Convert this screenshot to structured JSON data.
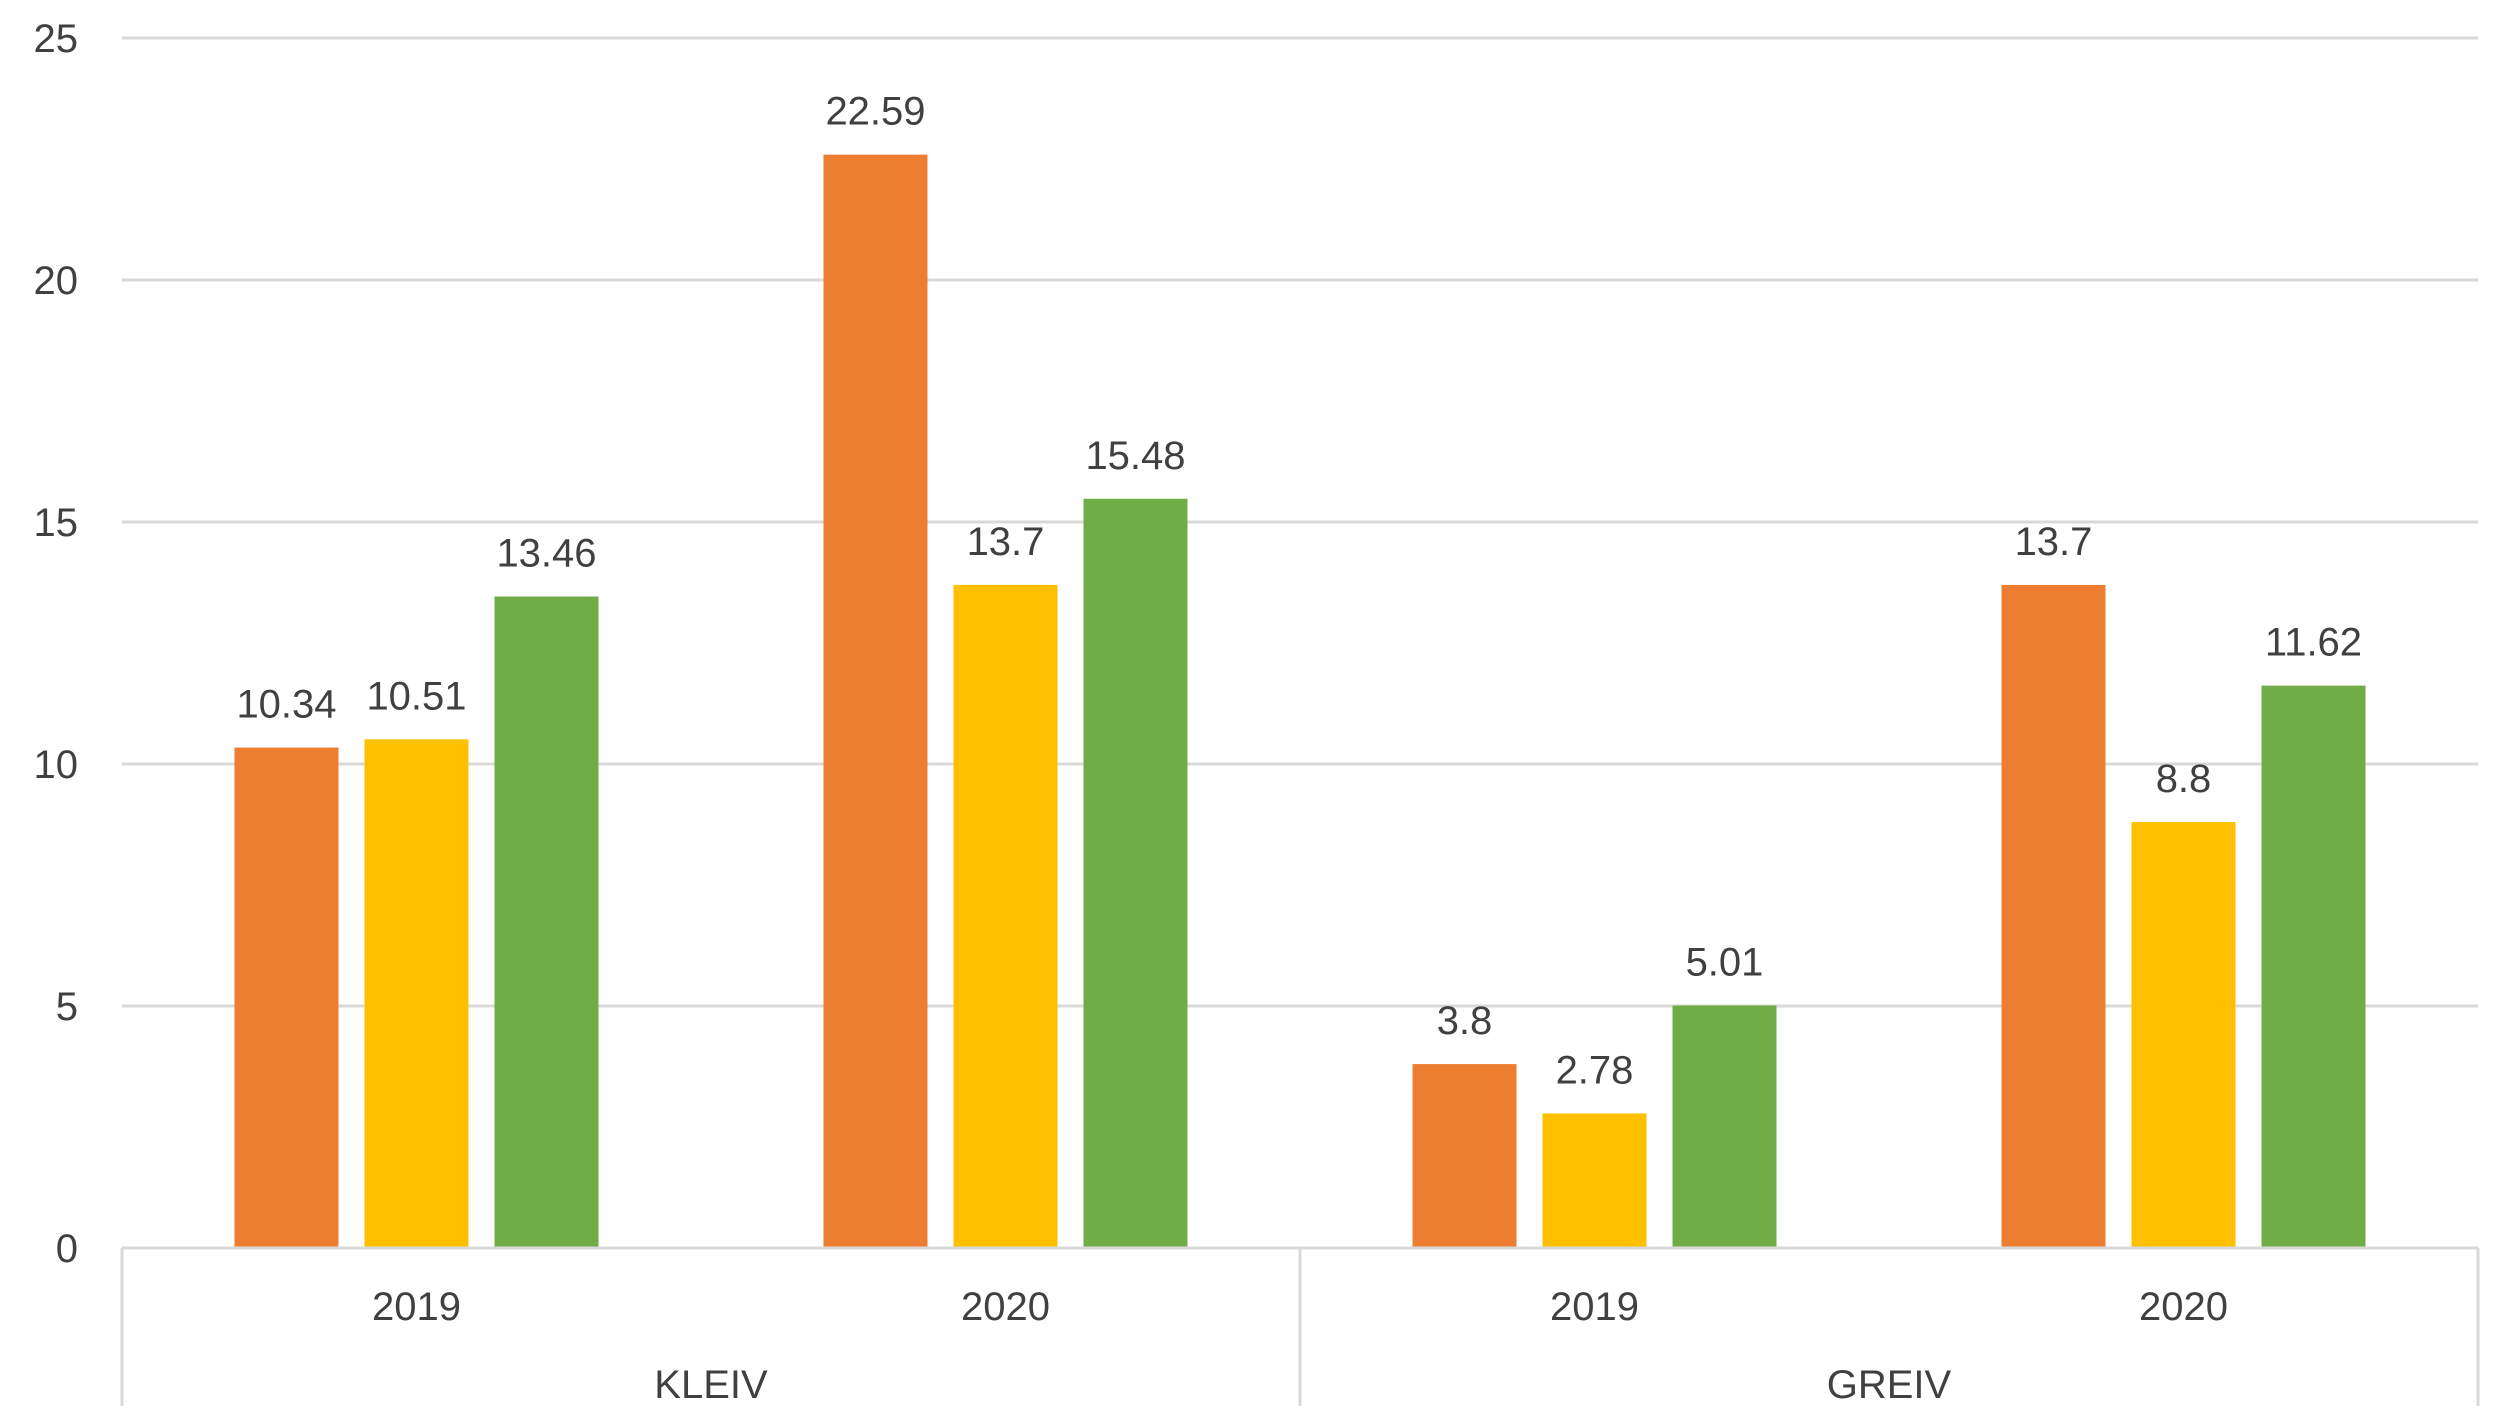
{
  "chart_data": {
    "type": "bar",
    "title": "",
    "xlabel": "",
    "ylabel": "",
    "ylim": [
      0,
      25
    ],
    "y_ticks": [
      0,
      5,
      10,
      15,
      20,
      25
    ],
    "grid": true,
    "legend": "none",
    "groups": [
      {
        "label": "KLEIV",
        "categories": [
          "2019",
          "2020"
        ]
      },
      {
        "label": "GREIV",
        "categories": [
          "2019",
          "2020"
        ]
      }
    ],
    "categories": [
      "2019",
      "2020",
      "2019",
      "2020"
    ],
    "series": [
      {
        "color": "#ED7D31",
        "values": [
          10.34,
          22.59,
          3.8,
          13.7
        ]
      },
      {
        "color": "#FFC000",
        "values": [
          10.51,
          13.7,
          2.78,
          8.8
        ]
      },
      {
        "color": "#70AD47",
        "values": [
          13.46,
          15.48,
          5.01,
          11.62
        ]
      }
    ],
    "data_labels": [
      [
        "10.34",
        "22.59",
        "3.8",
        "13.7"
      ],
      [
        "10.51",
        "13.7",
        "2.78",
        "8.8"
      ],
      [
        "13.46",
        "15.48",
        "5.01",
        "11.62"
      ]
    ],
    "tick_labels": [
      "0",
      "5",
      "10",
      "15",
      "20",
      "25"
    ],
    "colors": {
      "gridline": "#D9D9D9",
      "axis": "#D9D9D9",
      "text": "#404040"
    }
  }
}
